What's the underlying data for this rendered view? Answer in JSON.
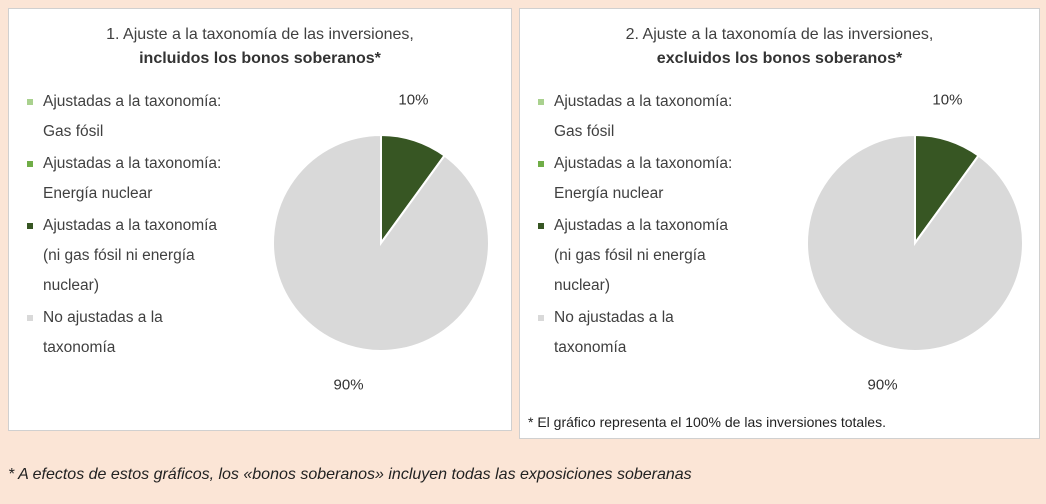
{
  "chart_data": [
    {
      "type": "pie",
      "title": "1. Ajuste a la taxonomía de las inversiones,",
      "subtitle": "incluidos los bonos soberanos*",
      "categories": [
        "Ajustadas a la taxonomía: Gas fósil",
        "Ajustadas a la taxonomía: Energía nuclear",
        "Ajustadas a la taxonomía (ni gas fósil ni energía nuclear)",
        "No ajustadas a la taxonomía"
      ],
      "colors": [
        "#a9d18e",
        "#70ad47",
        "#375623",
        "#d9d9d9"
      ],
      "values": [
        0,
        0,
        10,
        90
      ],
      "value_labels": [
        null,
        null,
        "10%",
        "90%"
      ]
    },
    {
      "type": "pie",
      "title": "2. Ajuste a la taxonomía de las inversiones,",
      "subtitle": "excluidos los bonos soberanos*",
      "categories": [
        "Ajustadas a la taxonomía: Gas fósil",
        "Ajustadas a la taxonomía: Energía nuclear",
        "Ajustadas a la taxonomía (ni gas fósil ni energía nuclear)",
        "No ajustadas a la taxonomía"
      ],
      "colors": [
        "#a9d18e",
        "#70ad47",
        "#375623",
        "#d9d9d9"
      ],
      "values": [
        0,
        0,
        10,
        90
      ],
      "value_labels": [
        null,
        null,
        "10%",
        "90%"
      ],
      "note": "* El gráfico representa el 100% de las inversiones totales."
    }
  ],
  "footnote": "* A efectos de estos gráficos, los «bonos soberanos» incluyen todas las exposiciones soberanas"
}
